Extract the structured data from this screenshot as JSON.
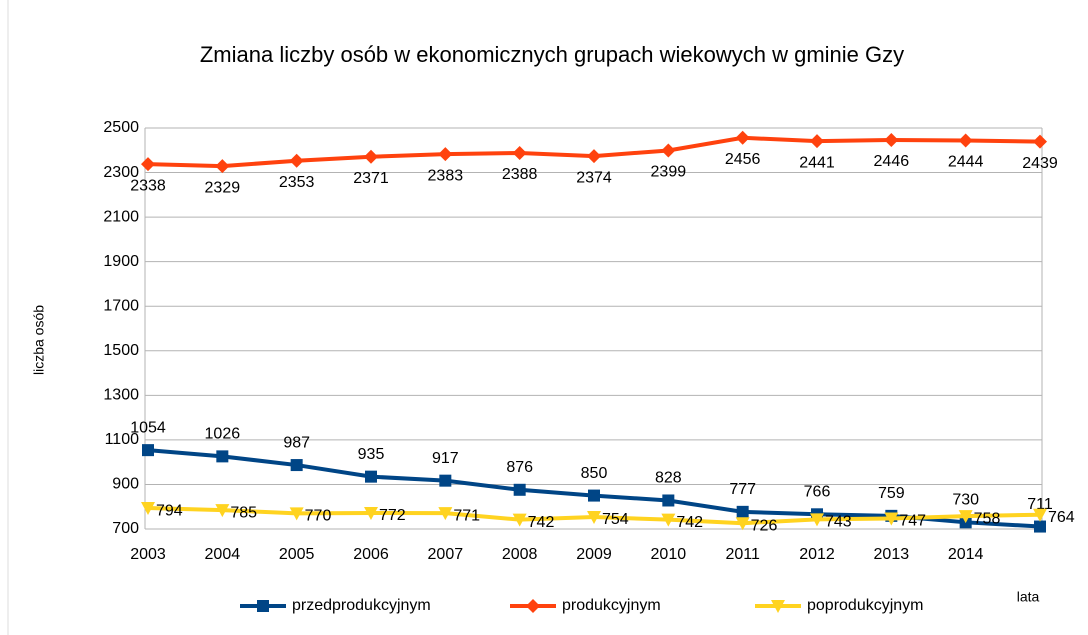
{
  "chart_data": {
    "type": "line",
    "title": "Zmiana liczby osób w ekonomicznych grupach wiekowych w gminie Gzy",
    "y_label": "liczba osób",
    "x_label": "lata",
    "categories": [
      "2003",
      "2004",
      "2005",
      "2006",
      "2007",
      "2008",
      "2009",
      "2010",
      "2011",
      "2012",
      "2013",
      "2014",
      null
    ],
    "series": [
      {
        "name": "przedprodukcyjnym",
        "color": "#004586",
        "marker": "square",
        "values": [
          1054,
          1026,
          987,
          935,
          917,
          876,
          850,
          828,
          777,
          766,
          759,
          730,
          711
        ]
      },
      {
        "name": "produkcyjnym",
        "color": "#ff420e",
        "marker": "diamond",
        "values": [
          2338,
          2329,
          2353,
          2371,
          2383,
          2388,
          2374,
          2399,
          2456,
          2441,
          2446,
          2444,
          2439
        ]
      },
      {
        "name": "poprodukcyjnym",
        "color": "#ffd320",
        "marker": "triangle-down",
        "values": [
          794,
          785,
          770,
          772,
          771,
          742,
          754,
          742,
          726,
          743,
          747,
          758,
          764
        ]
      }
    ],
    "ylim": [
      700,
      2500
    ],
    "yticks": [
      700,
      900,
      1100,
      1300,
      1500,
      1700,
      1900,
      2100,
      2300,
      2500
    ],
    "grid": true,
    "legend": "bottom"
  }
}
